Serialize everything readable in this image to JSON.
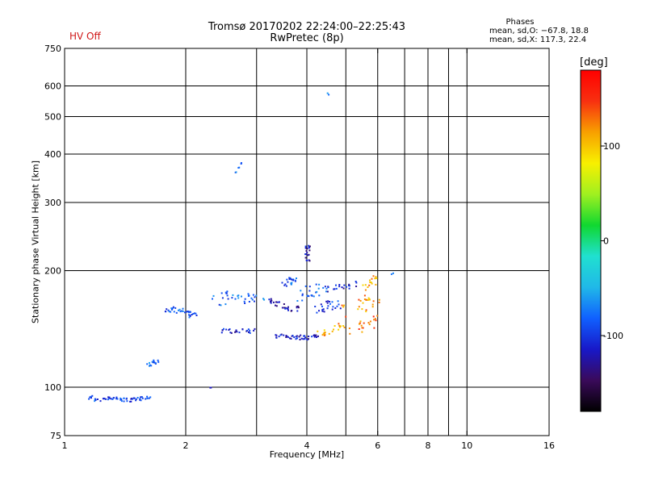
{
  "chart_data": {
    "type": "scatter",
    "title": "Tromsø 20170202 22:24:00–22:25:43",
    "subtitle": "RwPretec (8p)",
    "status": "HV Off",
    "xlabel": "Frequency [MHz]",
    "ylabel": "Stationary phase Virtual Height [km]",
    "xscale": "log",
    "yscale": "log",
    "xlim": [
      1,
      16
    ],
    "ylim": [
      75,
      750
    ],
    "xticks": [
      1,
      2,
      4,
      6,
      8,
      10,
      16
    ],
    "xtick_labels": [
      "1",
      "2",
      "4",
      "6",
      "8",
      "10",
      "16"
    ],
    "xminor": [
      3,
      5,
      7,
      9
    ],
    "yticks": [
      75,
      100,
      200,
      300,
      400,
      500,
      600,
      750
    ],
    "ytick_labels": [
      "75",
      "100",
      "200",
      "300",
      "400",
      "500",
      "600",
      "750"
    ],
    "grid": true,
    "phases": {
      "title": "Phases",
      "o_mode": "mean, sd,O: −67.8, 18.8",
      "x_mode": "mean, sd,X: 117.3, 22.4"
    },
    "colorbar": {
      "unit": "[deg]",
      "ticks": [
        100,
        0,
        -100
      ],
      "tick_labels": [
        "100",
        "0",
        "-100"
      ],
      "range": [
        -180,
        180
      ],
      "colors": [
        "#000000",
        "#3a0a5a",
        "#1818c8",
        "#1060ff",
        "#20b8e8",
        "#20e0d0",
        "#10d830",
        "#a0f020",
        "#f8f000",
        "#f8a000",
        "#f83010",
        "#ff0000"
      ]
    },
    "series": [
      {
        "x": [
          1.16,
          1.2,
          1.24,
          1.28,
          1.32,
          1.36,
          1.4,
          1.44,
          1.48,
          1.52,
          1.56,
          1.6
        ],
        "y": [
          94.5,
          93.5,
          93.5,
          93.8,
          94.2,
          93.5,
          93.2,
          93.0,
          93.2,
          93.5,
          93.8,
          95.0
        ],
        "phase": -95,
        "spread": 1.2
      },
      {
        "x": [
          1.62,
          1.65,
          1.68
        ],
        "y": [
          115,
          116,
          117
        ],
        "phase": -80,
        "spread": 1.2
      },
      {
        "x": [
          1.8,
          1.85,
          1.9,
          1.95,
          2.0,
          2.05,
          2.1
        ],
        "y": [
          157,
          159,
          160,
          158,
          157,
          155,
          154
        ],
        "phase": -85,
        "spread": 2
      },
      {
        "x": [
          2.4,
          2.5,
          2.6,
          2.7,
          2.8,
          2.9,
          3.0
        ],
        "y": [
          168,
          172,
          174,
          171,
          169,
          170,
          172
        ],
        "phase": -80,
        "spread": 3
      },
      {
        "x": [
          2.5,
          2.6,
          2.7,
          2.8,
          2.9
        ],
        "y": [
          141,
          140,
          140,
          141,
          140
        ],
        "phase": -110,
        "spread": 1.5
      },
      {
        "x": [
          3.2,
          3.3,
          3.4,
          3.5,
          3.6,
          3.7
        ],
        "y": [
          168,
          166,
          164,
          162,
          161,
          160
        ],
        "phase": -120,
        "spread": 2
      },
      {
        "x": [
          3.4,
          3.5,
          3.6,
          3.7,
          3.8,
          3.9,
          4.0,
          4.1,
          4.2
        ],
        "y": [
          136,
          136,
          135,
          135,
          135,
          135,
          135,
          135,
          136
        ],
        "phase": -115,
        "spread": 1.5
      },
      {
        "x": [
          3.55,
          3.6,
          3.65,
          3.7
        ],
        "y": [
          185,
          188,
          190,
          192
        ],
        "phase": -90,
        "spread": 2
      },
      {
        "x": [
          3.9,
          4.0,
          4.1,
          4.2,
          4.3
        ],
        "y": [
          172,
          176,
          178,
          180,
          178
        ],
        "phase": -85,
        "spread": 3
      },
      {
        "x": [
          4.0,
          4.0,
          4.0,
          4.0
        ],
        "y": [
          215,
          222,
          228,
          232
        ],
        "phase": -120,
        "spread": 1
      },
      {
        "x": [
          4.3,
          4.4,
          4.5,
          4.6,
          4.7
        ],
        "y": [
          160,
          162,
          163,
          164,
          165
        ],
        "phase": -100,
        "spread": 3
      },
      {
        "x": [
          4.6,
          4.8,
          5.0,
          5.2
        ],
        "y": [
          180,
          182,
          184,
          186
        ],
        "phase": -110,
        "spread": 2
      },
      {
        "x": [
          4.3,
          4.5,
          4.7,
          4.9
        ],
        "y": [
          138,
          140,
          142,
          144
        ],
        "phase": 110,
        "spread": 2
      },
      {
        "x": [
          5.1,
          5.3,
          5.5,
          5.7,
          5.9
        ],
        "y": [
          158,
          162,
          165,
          167,
          168
        ],
        "phase": 120,
        "spread": 4
      },
      {
        "x": [
          5.3,
          5.5,
          5.7,
          5.9
        ],
        "y": [
          142,
          145,
          147,
          150
        ],
        "phase": 130,
        "spread": 3
      },
      {
        "x": [
          5.6,
          5.75,
          5.9
        ],
        "y": [
          182,
          188,
          192
        ],
        "phase": 110,
        "spread": 2
      },
      {
        "x": [
          2.65,
          2.7,
          2.75
        ],
        "y": [
          362,
          370,
          380
        ],
        "phase": -80,
        "spread": 0.5
      },
      {
        "x": [
          4.5
        ],
        "y": [
          575
        ],
        "phase": -80,
        "spread": 0.5
      },
      {
        "x": [
          2.3
        ],
        "y": [
          100
        ],
        "phase": -120,
        "spread": 0.3
      },
      {
        "x": [
          6.5
        ],
        "y": [
          197
        ],
        "phase": -80,
        "spread": 0.5
      }
    ]
  }
}
